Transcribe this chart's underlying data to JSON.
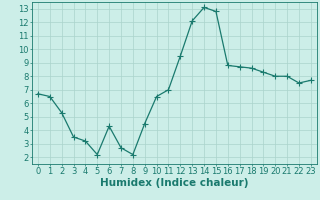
{
  "x": [
    0,
    1,
    2,
    3,
    4,
    5,
    6,
    7,
    8,
    9,
    10,
    11,
    12,
    13,
    14,
    15,
    16,
    17,
    18,
    19,
    20,
    21,
    22,
    23
  ],
  "y": [
    6.7,
    6.5,
    5.3,
    3.5,
    3.2,
    2.2,
    4.3,
    2.7,
    2.2,
    4.5,
    6.5,
    7.0,
    9.5,
    12.1,
    13.1,
    12.8,
    8.8,
    8.7,
    8.6,
    8.3,
    8.0,
    8.0,
    7.5,
    7.7
  ],
  "line_color": "#1a7a6e",
  "marker": "D",
  "marker_size": 2.0,
  "bg_color": "#cceee8",
  "grid_color": "#aad4cc",
  "xlabel": "Humidex (Indice chaleur)",
  "ylabel": "",
  "xlim": [
    -0.5,
    23.5
  ],
  "ylim": [
    1.5,
    13.5
  ],
  "yticks": [
    2,
    3,
    4,
    5,
    6,
    7,
    8,
    9,
    10,
    11,
    12,
    13
  ],
  "xticks": [
    0,
    1,
    2,
    3,
    4,
    5,
    6,
    7,
    8,
    9,
    10,
    11,
    12,
    13,
    14,
    15,
    16,
    17,
    18,
    19,
    20,
    21,
    22,
    23
  ],
  "tick_label_fontsize": 6.0,
  "xlabel_fontsize": 7.5,
  "tick_color": "#1a7a6e",
  "axis_color": "#1a7a6e",
  "linewidth": 0.9
}
